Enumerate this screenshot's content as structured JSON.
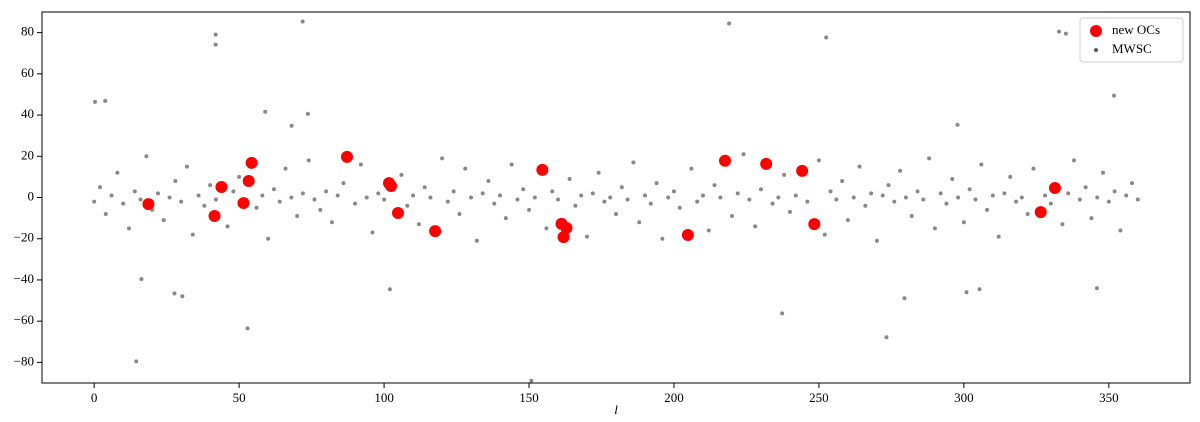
{
  "chart_data": {
    "type": "scatter",
    "xlabel": "l",
    "xlim": [
      -18,
      378
    ],
    "ylim": [
      -90,
      90
    ],
    "xticks": [
      0,
      50,
      100,
      150,
      200,
      250,
      300,
      350
    ],
    "yticks": [
      {
        "value": -80,
        "label": "−80"
      },
      {
        "value": -60,
        "label": "−60"
      },
      {
        "value": -40,
        "label": "−40"
      },
      {
        "value": -20,
        "label": "−20"
      },
      0,
      20,
      40,
      60,
      80
    ],
    "legend": "upper right",
    "series": [
      {
        "name": "MWSC",
        "color": "#555555",
        "x": [
          0,
          2,
          4,
          6,
          8,
          10,
          12,
          14,
          16,
          18,
          20,
          22,
          24,
          26,
          28,
          30,
          32,
          34,
          36,
          38,
          40,
          42,
          46,
          48,
          50,
          56,
          58,
          60,
          62,
          64,
          66,
          68,
          70,
          72,
          74,
          76,
          78,
          80,
          82,
          84,
          86,
          90,
          92,
          94,
          96,
          98,
          100,
          106,
          108,
          110,
          112,
          114,
          116,
          120,
          122,
          124,
          126,
          128,
          130,
          132,
          134,
          136,
          138,
          140,
          142,
          144,
          146,
          148,
          150,
          152,
          156,
          158,
          160,
          164,
          166,
          168,
          170,
          172,
          174,
          176,
          178,
          180,
          182,
          184,
          186,
          188,
          190,
          192,
          194,
          196,
          198,
          200,
          202,
          206,
          208,
          210,
          212,
          214,
          216,
          220,
          222,
          224,
          226,
          228,
          230,
          234,
          236,
          238,
          240,
          242,
          246,
          250,
          252,
          254,
          256,
          258,
          260,
          262,
          264,
          266,
          268,
          270,
          272,
          274,
          276,
          278,
          280,
          282,
          284,
          286,
          288,
          290,
          292,
          294,
          296,
          298,
          300,
          302,
          304,
          306,
          308,
          310,
          312,
          314,
          316,
          318,
          320,
          322,
          324,
          328,
          330,
          334,
          336,
          338,
          340,
          342,
          344,
          346,
          348,
          350,
          352,
          354,
          356,
          358,
          360,
          0.3,
          3.8,
          41.9,
          41.9,
          71.9,
          219,
          252.5,
          332.8,
          335.2,
          351.8,
          345.9,
          14.5,
          52.9,
          16.3,
          27.7,
          30.4,
          102,
          150.8,
          237.3,
          273.3,
          279.5,
          300.9,
          305.4,
          59,
          73.7,
          68.1,
          297.8
        ],
        "y": [
          -2,
          5,
          -8,
          1,
          12,
          -3,
          -15,
          3,
          -1,
          20,
          -6,
          2,
          -11,
          0,
          8,
          -2,
          15,
          -18,
          1,
          -4,
          6,
          -1,
          -14,
          3,
          10,
          -5,
          1,
          -20,
          4,
          -2,
          14,
          0,
          -9,
          2,
          18,
          -1,
          -6,
          3,
          -12,
          1,
          7,
          -3,
          16,
          0,
          -17,
          2,
          -1,
          11,
          -4,
          1,
          -13,
          5,
          0,
          19,
          -2,
          3,
          -8,
          14,
          0,
          -21,
          2,
          8,
          -3,
          1,
          -10,
          16,
          -1,
          4,
          -6,
          0,
          -15,
          3,
          -1,
          9,
          -4,
          1,
          -19,
          2,
          12,
          -2,
          0,
          -8,
          5,
          -1,
          17,
          -12,
          1,
          -3,
          7,
          -20,
          0,
          3,
          -5,
          14,
          -2,
          1,
          -16,
          6,
          0,
          -9,
          2,
          21,
          -1,
          -14,
          4,
          -3,
          0,
          11,
          -7,
          1,
          -2,
          18,
          -18,
          3,
          -1,
          8,
          -11,
          0,
          15,
          -4,
          2,
          -21,
          1,
          6,
          -2,
          13,
          0,
          -9,
          3,
          -1,
          19,
          -15,
          2,
          -3,
          9,
          0,
          -12,
          4,
          -1,
          16,
          -6,
          1,
          -19,
          2,
          10,
          -2,
          0,
          -8,
          14,
          1,
          -3,
          -13,
          2,
          18,
          -1,
          5,
          -10,
          0,
          12,
          -2,
          3,
          -16,
          1,
          7,
          -1,
          46.4,
          46.9,
          79,
          74.2,
          85.4,
          84.4,
          77.6,
          80.5,
          79.5,
          49.4,
          -44,
          -79.5,
          -63.5,
          -39.6,
          -46.5,
          -47.9,
          -44.5,
          -88.9,
          -56.2,
          -67.8,
          -48.9,
          -46,
          -44.5,
          41.6,
          40.6,
          34.8,
          35.3
        ]
      },
      {
        "name": "new OCs",
        "color": "#ff0000",
        "x": [
          18.7,
          41.5,
          43.9,
          51.5,
          53.3,
          54.3,
          87.2,
          101.7,
          102.4,
          104.8,
          117.6,
          154.6,
          161.2,
          162.9,
          161.9,
          204.8,
          217.6,
          231.8,
          244.2,
          248.4,
          326.5,
          331.4
        ],
        "y": [
          -3.2,
          -9,
          5.1,
          -2.7,
          8,
          16.8,
          19.7,
          7,
          5.6,
          -7.5,
          -16.3,
          13.4,
          -12.8,
          -14.8,
          -19.2,
          -18.2,
          17.8,
          16.3,
          12.9,
          -12.9,
          -7.1,
          4.6
        ]
      }
    ]
  }
}
